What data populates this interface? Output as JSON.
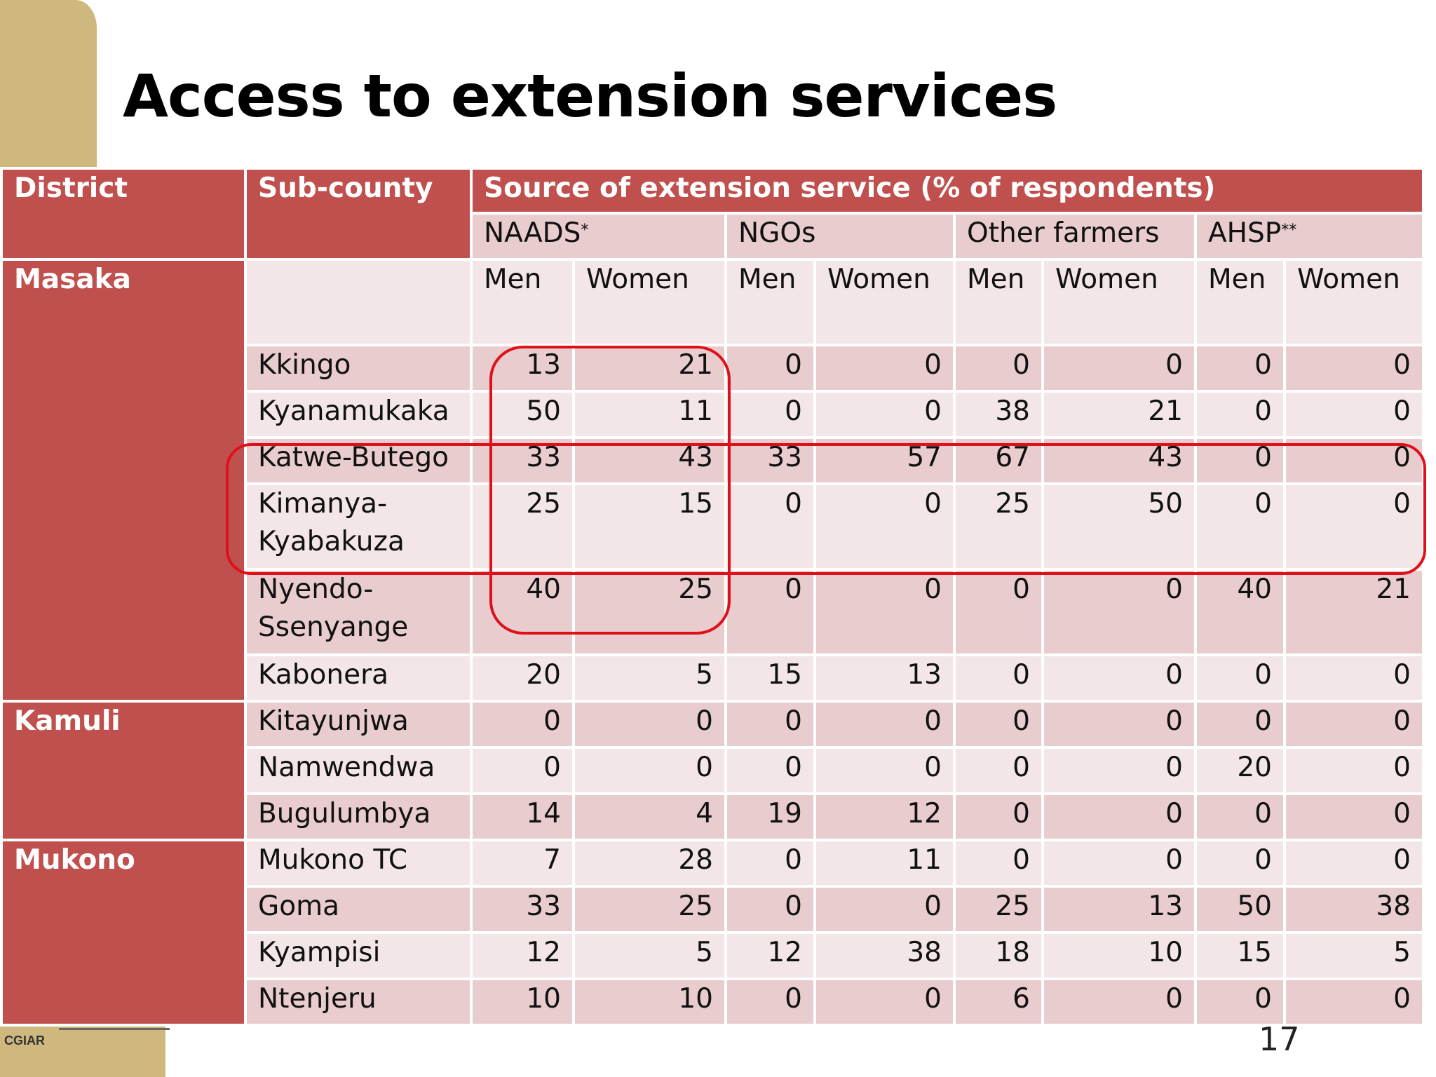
{
  "title": "Access to extension services",
  "page_number": "17",
  "logo": {
    "text": "CGIAR"
  },
  "table": {
    "headers": {
      "district": "District",
      "subcounty": "Sub-county",
      "source": "Source of extension service (% of respondents)"
    },
    "sources": [
      {
        "name": "NAADS",
        "sup": "*"
      },
      {
        "name": "NGOs",
        "sup": ""
      },
      {
        "name": "Other farmers",
        "sup": ""
      },
      {
        "name": "AHSP",
        "sup": "**"
      }
    ],
    "gender": {
      "men": "Men",
      "women": "Women"
    },
    "districts": [
      {
        "name": "Masaka",
        "rows": [
          {
            "sub": "Kkingo",
            "vals": [
              "13",
              "21",
              "0",
              "0",
              "0",
              "0",
              "0",
              "0"
            ]
          },
          {
            "sub": "Kyanamukaka",
            "vals": [
              "50",
              "11",
              "0",
              "0",
              "38",
              "21",
              "0",
              "0"
            ]
          },
          {
            "sub": "Katwe-Butego",
            "vals": [
              "33",
              "43",
              "33",
              "57",
              "67",
              "43",
              "0",
              "0"
            ]
          },
          {
            "sub": "Kimanya-Kyabakuza",
            "vals": [
              "25",
              "15",
              "0",
              "0",
              "25",
              "50",
              "0",
              "0"
            ]
          },
          {
            "sub": "Nyendo-Ssenyange",
            "vals": [
              "40",
              "25",
              "0",
              "0",
              "0",
              "0",
              "40",
              "21"
            ]
          },
          {
            "sub": "Kabonera",
            "vals": [
              "20",
              "5",
              "15",
              "13",
              "0",
              "0",
              "0",
              "0"
            ]
          }
        ]
      },
      {
        "name": "Kamuli",
        "rows": [
          {
            "sub": "Kitayunjwa",
            "vals": [
              "0",
              "0",
              "0",
              "0",
              "0",
              "0",
              "0",
              "0"
            ]
          },
          {
            "sub": "Namwendwa",
            "vals": [
              "0",
              "0",
              "0",
              "0",
              "0",
              "0",
              "20",
              "0"
            ]
          },
          {
            "sub": "Bugulumbya",
            "vals": [
              "14",
              "4",
              "19",
              "12",
              "0",
              "0",
              "0",
              "0"
            ]
          }
        ]
      },
      {
        "name": "Mukono",
        "rows": [
          {
            "sub": "Mukono TC",
            "vals": [
              "7",
              "28",
              "0",
              "11",
              "0",
              "0",
              "0",
              "0"
            ]
          },
          {
            "sub": "Goma",
            "vals": [
              "33",
              "25",
              "0",
              "0",
              "25",
              "13",
              "50",
              "38"
            ]
          },
          {
            "sub": "Kyampisi",
            "vals": [
              "12",
              "5",
              "12",
              "38",
              "18",
              "10",
              "15",
              "5"
            ]
          },
          {
            "sub": "Ntenjeru",
            "vals": [
              "10",
              "10",
              "0",
              "0",
              "6",
              "0",
              "0",
              "0"
            ]
          }
        ]
      }
    ]
  },
  "highlight_color": "#e0101a"
}
